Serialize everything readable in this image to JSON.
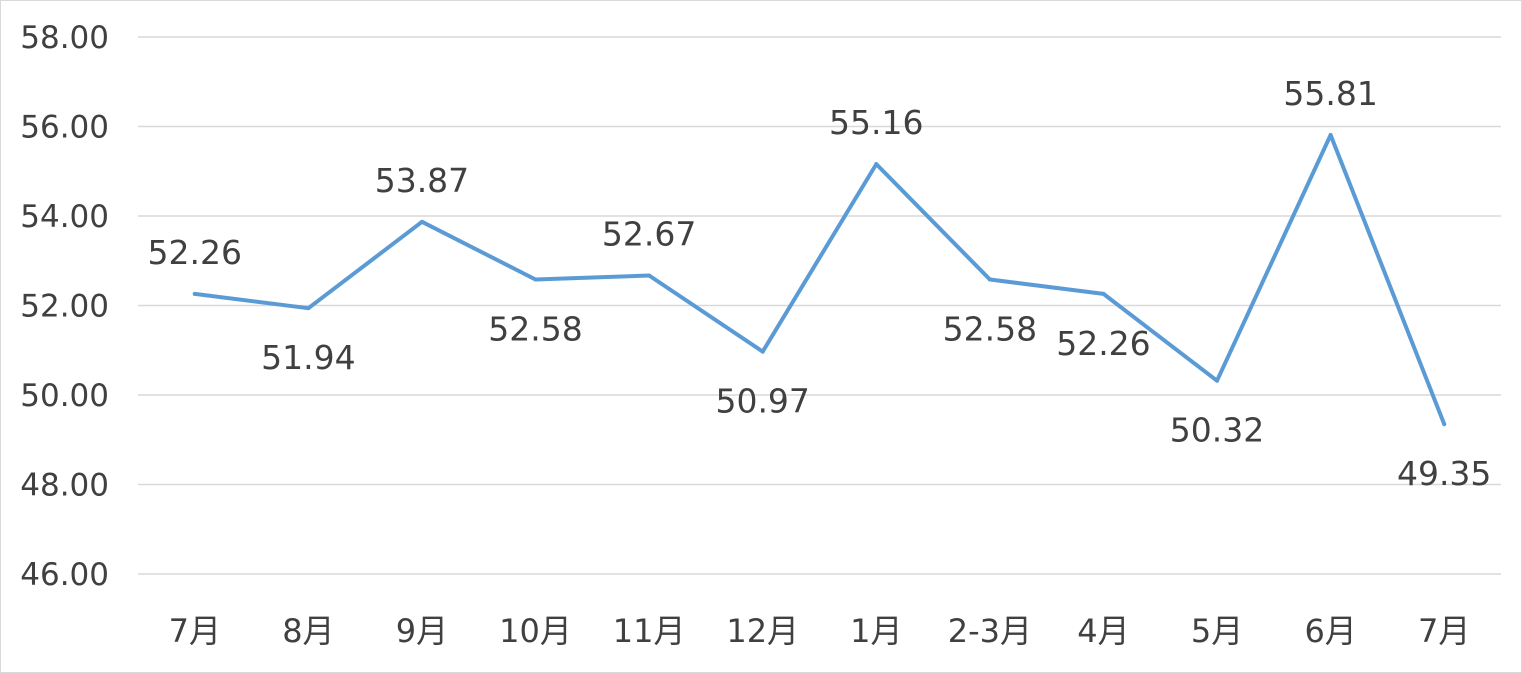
{
  "chart_data": {
    "type": "line",
    "title": "",
    "xlabel": "",
    "ylabel": "",
    "categories": [
      "7月",
      "8月",
      "9月",
      "10月",
      "11月",
      "12月",
      "1月",
      "2-3月",
      "4月",
      "5月",
      "6月",
      "7月"
    ],
    "series": [
      {
        "values": [
          52.26,
          51.94,
          53.87,
          52.58,
          52.67,
          50.97,
          55.16,
          52.58,
          52.26,
          50.32,
          55.81,
          49.35
        ],
        "data_labels": [
          "52.26",
          "51.94",
          "53.87",
          "52.58",
          "52.67",
          "50.97",
          "55.16",
          "52.58",
          "52.26",
          "50.32",
          "55.81",
          "49.35"
        ],
        "data_label_positions": [
          "above",
          "below",
          "above",
          "below",
          "above",
          "below",
          "above",
          "below",
          "below",
          "below",
          "above",
          "below"
        ],
        "color": "#5b9bd5"
      }
    ],
    "ylim": [
      46,
      58
    ],
    "yticks": [
      46,
      48,
      50,
      52,
      54,
      56,
      58
    ],
    "ytick_labels": [
      "46.00",
      "48.00",
      "50.00",
      "52.00",
      "54.00",
      "56.00",
      "58.00"
    ],
    "grid": true,
    "legend": "none",
    "colors": {
      "grid": "#d9d9d9",
      "text": "#404040",
      "line": "#5b9bd5"
    }
  }
}
